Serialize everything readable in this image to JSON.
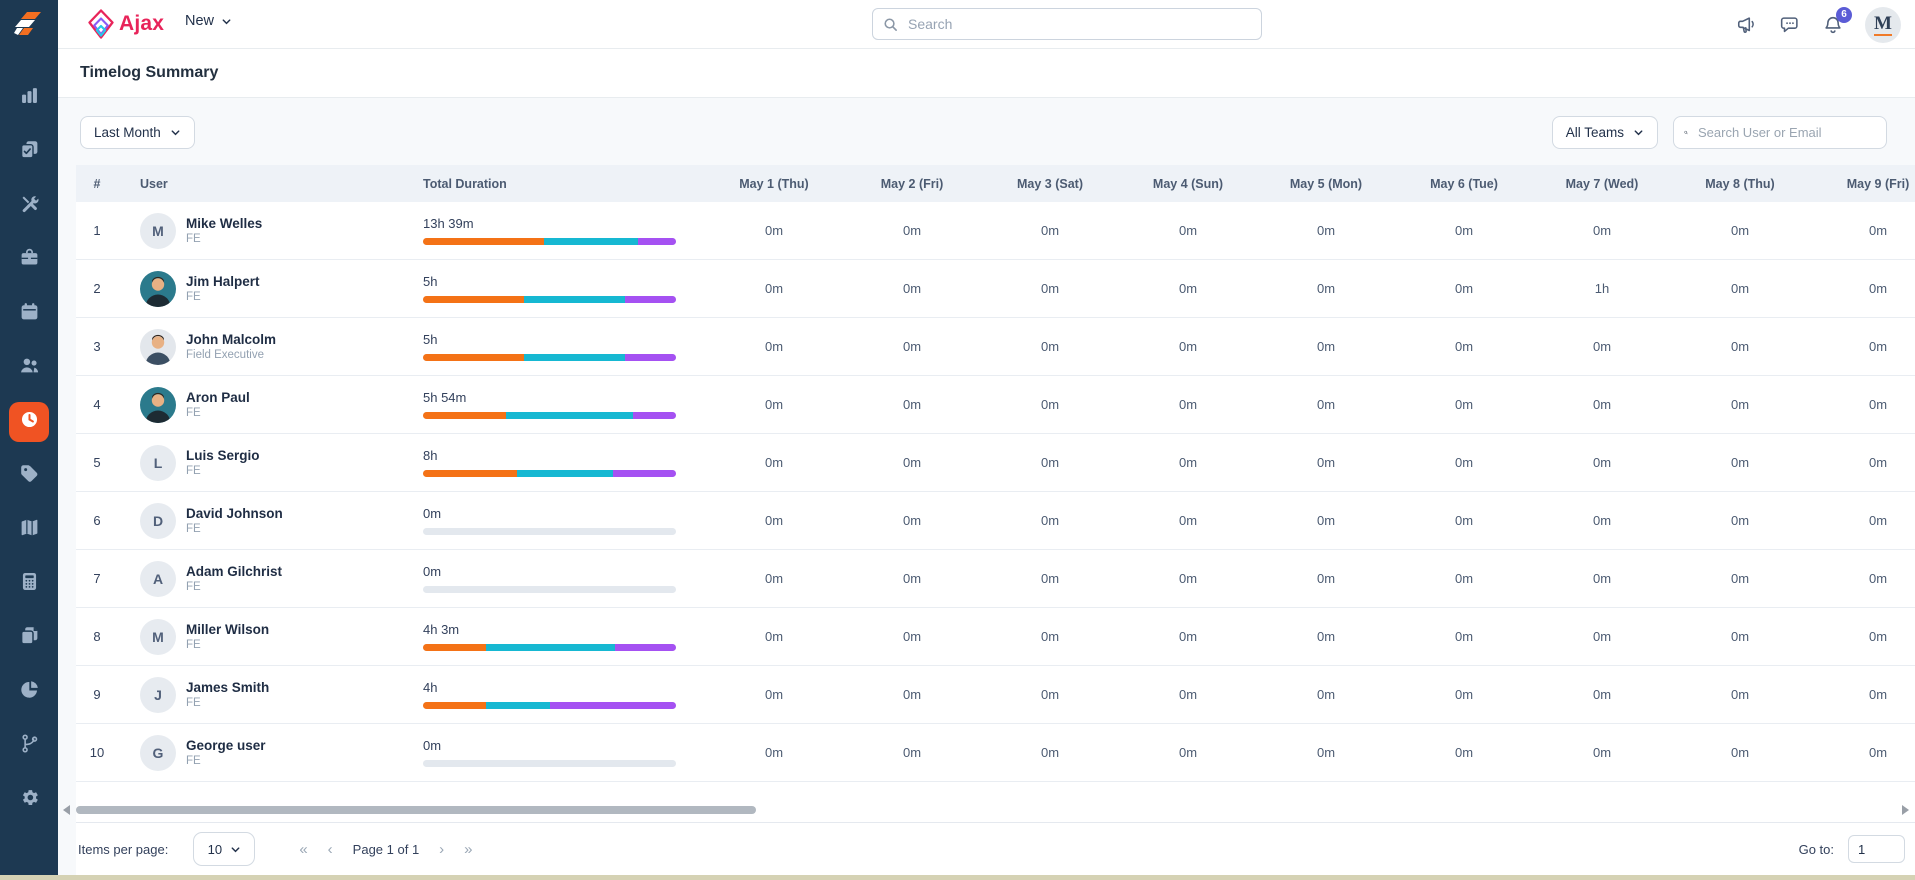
{
  "brand": {
    "name": "Ajax"
  },
  "topnav": {
    "new_label": "New",
    "search_placeholder": "Search",
    "notification_count": "6",
    "avatar_initial": "M"
  },
  "sidebar": {
    "active_item": "timelog",
    "items": [
      "analytics",
      "tasks",
      "tools",
      "services",
      "calendar",
      "team",
      "timelog",
      "tags",
      "map",
      "calculator",
      "documents",
      "reports",
      "workflow",
      "settings"
    ]
  },
  "page": {
    "title": "Timelog Summary"
  },
  "filters": {
    "date_range": "Last Month",
    "team": "All Teams",
    "user_search_placeholder": "Search User or Email"
  },
  "colors": {
    "accent_orange": "#f05323",
    "bar_orange": "#f47216",
    "bar_cyan": "#16b8d2",
    "bar_purple": "#a551f2",
    "bar_empty": "#e3e8ee",
    "badge_indigo": "#5b5cd6",
    "brand_crimson": "#e8245a",
    "sidebar_navy": "#1d3952"
  },
  "table": {
    "columns": {
      "index": "#",
      "user": "User",
      "duration": "Total Duration"
    },
    "date_columns": [
      "May 1 (Thu)",
      "May 2 (Fri)",
      "May 3 (Sat)",
      "May 4 (Sun)",
      "May 5 (Mon)",
      "May 6 (Tue)",
      "May 7 (Wed)",
      "May 8 (Thu)",
      "May 9 (Fri)"
    ],
    "rows": [
      {
        "index": "1",
        "name": "Mike Welles",
        "role": "FE",
        "duration": "13h 39m",
        "avatar": {
          "type": "initial",
          "letter": "M"
        },
        "bar_segments": [
          48,
          37,
          15
        ],
        "daily": [
          "0m",
          "0m",
          "0m",
          "0m",
          "0m",
          "0m",
          "0m",
          "0m",
          "0m"
        ]
      },
      {
        "index": "2",
        "name": "Jim Halpert",
        "role": "FE",
        "duration": "5h",
        "avatar": {
          "type": "photo",
          "variant": "teal"
        },
        "bar_segments": [
          40,
          40,
          20
        ],
        "daily": [
          "0m",
          "0m",
          "0m",
          "0m",
          "0m",
          "0m",
          "1h",
          "0m",
          "0m"
        ]
      },
      {
        "index": "3",
        "name": "John Malcolm",
        "role": "Field Executive",
        "duration": "5h",
        "avatar": {
          "type": "photo",
          "variant": "light"
        },
        "bar_segments": [
          40,
          40,
          20
        ],
        "daily": [
          "0m",
          "0m",
          "0m",
          "0m",
          "0m",
          "0m",
          "0m",
          "0m",
          "0m"
        ]
      },
      {
        "index": "4",
        "name": "Aron Paul",
        "role": "FE",
        "duration": "5h 54m",
        "avatar": {
          "type": "photo",
          "variant": "teal"
        },
        "bar_segments": [
          33,
          50,
          17
        ],
        "daily": [
          "0m",
          "0m",
          "0m",
          "0m",
          "0m",
          "0m",
          "0m",
          "0m",
          "0m"
        ]
      },
      {
        "index": "5",
        "name": "Luis Sergio",
        "role": "FE",
        "duration": "8h",
        "avatar": {
          "type": "initial",
          "letter": "L"
        },
        "bar_segments": [
          37,
          38,
          25
        ],
        "daily": [
          "0m",
          "0m",
          "0m",
          "0m",
          "0m",
          "0m",
          "0m",
          "0m",
          "0m"
        ]
      },
      {
        "index": "6",
        "name": "David Johnson",
        "role": "FE",
        "duration": "0m",
        "avatar": {
          "type": "initial",
          "letter": "D"
        },
        "bar_segments": [],
        "daily": [
          "0m",
          "0m",
          "0m",
          "0m",
          "0m",
          "0m",
          "0m",
          "0m",
          "0m"
        ]
      },
      {
        "index": "7",
        "name": "Adam Gilchrist",
        "role": "FE",
        "duration": "0m",
        "avatar": {
          "type": "initial",
          "letter": "A"
        },
        "bar_segments": [],
        "daily": [
          "0m",
          "0m",
          "0m",
          "0m",
          "0m",
          "0m",
          "0m",
          "0m",
          "0m"
        ]
      },
      {
        "index": "8",
        "name": "Miller Wilson",
        "role": "FE",
        "duration": "4h 3m",
        "avatar": {
          "type": "initial",
          "letter": "M"
        },
        "bar_segments": [
          25,
          51,
          24
        ],
        "daily": [
          "0m",
          "0m",
          "0m",
          "0m",
          "0m",
          "0m",
          "0m",
          "0m",
          "0m"
        ]
      },
      {
        "index": "9",
        "name": "James Smith",
        "role": "FE",
        "duration": "4h",
        "avatar": {
          "type": "initial",
          "letter": "J"
        },
        "bar_segments": [
          25,
          25,
          50
        ],
        "daily": [
          "0m",
          "0m",
          "0m",
          "0m",
          "0m",
          "0m",
          "0m",
          "0m",
          "0m"
        ]
      },
      {
        "index": "10",
        "name": "George user",
        "role": "FE",
        "duration": "0m",
        "avatar": {
          "type": "initial",
          "letter": "G"
        },
        "bar_segments": [],
        "daily": [
          "0m",
          "0m",
          "0m",
          "0m",
          "0m",
          "0m",
          "0m",
          "0m",
          "0m"
        ]
      }
    ]
  },
  "pagination": {
    "items_per_page_label": "Items per page:",
    "items_per_page": "10",
    "first": "«",
    "prev": "‹",
    "page_label": "Page 1 of 1",
    "next": "›",
    "last": "»",
    "goto_label": "Go to:",
    "goto_value": "1"
  }
}
